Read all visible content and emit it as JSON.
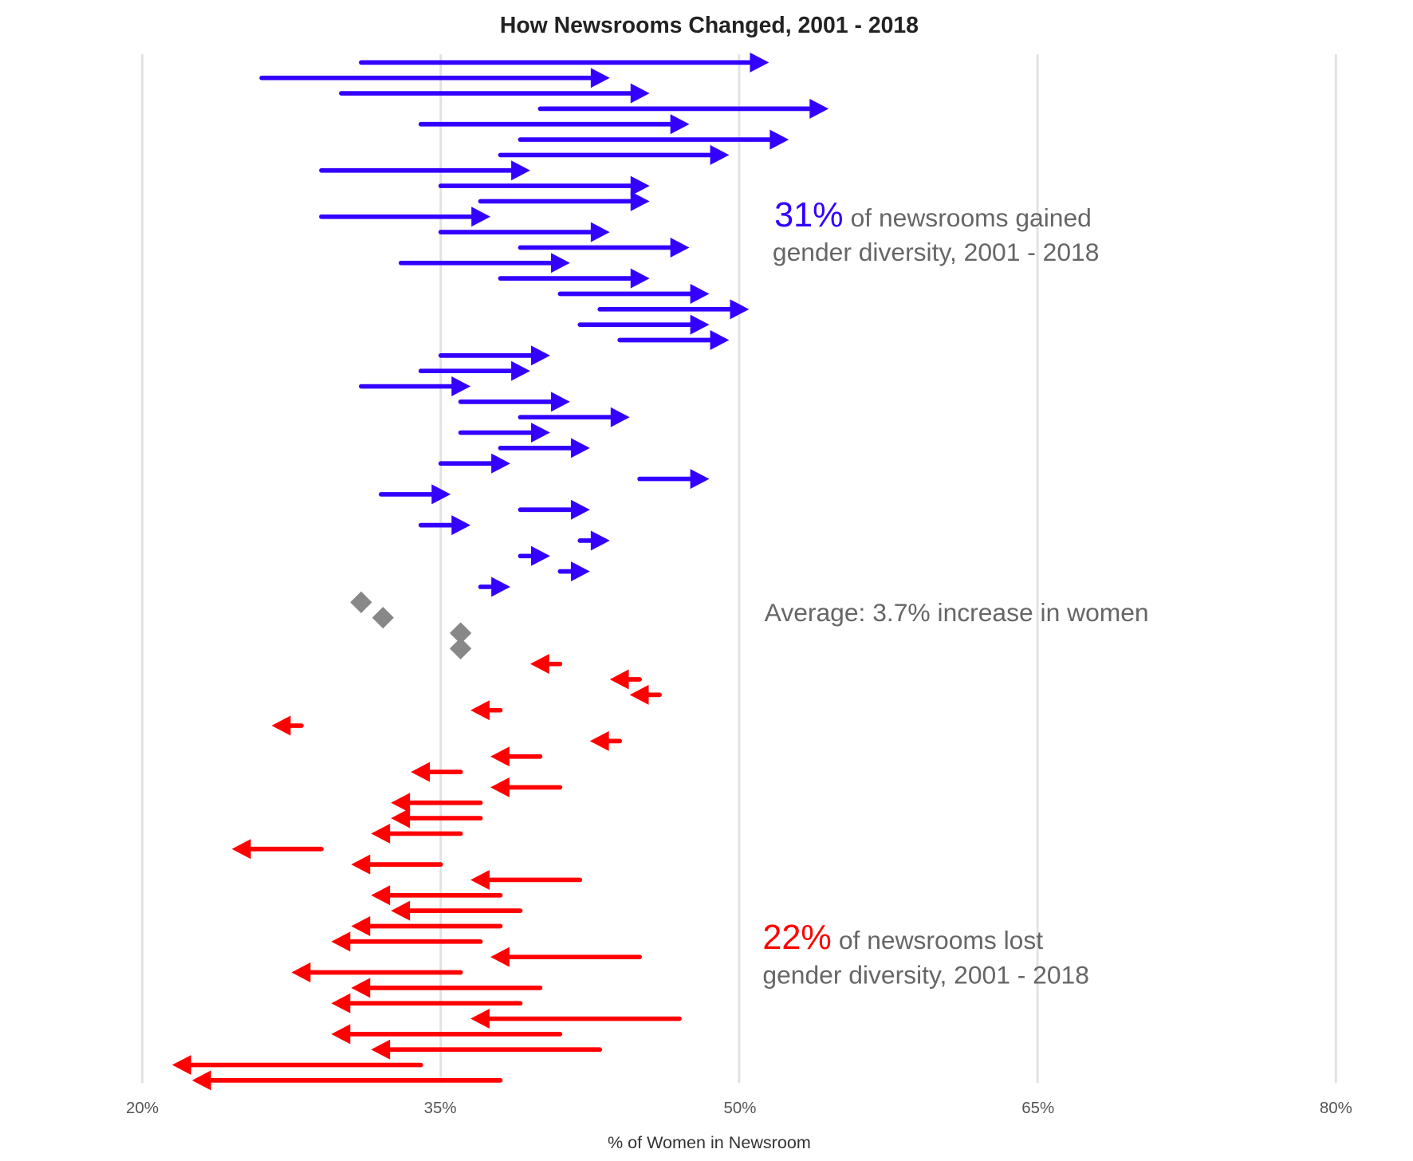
{
  "chart_data": {
    "type": "arrow-plot",
    "title": "How Newsrooms Changed, 2001 - 2018",
    "xlabel": "% of Women in Newsroom",
    "ylabel": "",
    "xlim": [
      20,
      80
    ],
    "xticks": [
      "20%",
      "35%",
      "50%",
      "65%",
      "80%"
    ],
    "xtick_values": [
      20,
      35,
      50,
      65,
      80
    ],
    "grid": "vertical",
    "colors": {
      "gained": "#3300ff",
      "lost": "#ff0000",
      "unchanged": "#888888",
      "text": "#666666"
    },
    "series": [
      {
        "name": "gained",
        "from": [
          31,
          26,
          30,
          40,
          34,
          39,
          38,
          29,
          35,
          37,
          29,
          35,
          39,
          33,
          38,
          41,
          43,
          42,
          44,
          35,
          34,
          31,
          36,
          39,
          36,
          38,
          35,
          45,
          32,
          39,
          34,
          42,
          39,
          41,
          37
        ],
        "to": [
          51.5,
          43.5,
          45.5,
          54.5,
          47.5,
          52.5,
          49.5,
          39.5,
          45.5,
          45.5,
          37.5,
          43.5,
          47.5,
          41.5,
          45.5,
          48.5,
          50.5,
          48.5,
          49.5,
          40.5,
          39.5,
          36.5,
          41.5,
          44.5,
          40.5,
          42.5,
          38.5,
          48.5,
          35.5,
          42.5,
          36.5,
          43.5,
          40.5,
          42.5,
          38.5
        ]
      },
      {
        "name": "unchanged",
        "from": [
          31,
          32.1,
          36,
          36
        ],
        "to": [
          31,
          32.1,
          36,
          36
        ]
      },
      {
        "name": "lost",
        "from": [
          41,
          45,
          46,
          38,
          28,
          44,
          40,
          36,
          41,
          37,
          37,
          36,
          29,
          35,
          42,
          38,
          39,
          38,
          37,
          45,
          36,
          40,
          39,
          47,
          41,
          43,
          34,
          38
        ],
        "to": [
          39.5,
          43.5,
          44.5,
          36.5,
          26.5,
          42.5,
          37.5,
          33.5,
          37.5,
          32.5,
          32.5,
          31.5,
          24.5,
          30.5,
          36.5,
          31.5,
          32.5,
          30.5,
          29.5,
          37.5,
          27.5,
          30.5,
          29.5,
          36.5,
          29.5,
          31.5,
          21.5,
          22.5
        ]
      }
    ],
    "annotations": {
      "gained_pct": "31%",
      "gained_text1": "of newsrooms gained",
      "gained_text2": "gender diversity, 2001 - 2018",
      "average": "Average: 3.7% increase in women",
      "lost_pct": "22%",
      "lost_text1": "of newsrooms lost",
      "lost_text2": "gender diversity, 2001 - 2018"
    }
  }
}
